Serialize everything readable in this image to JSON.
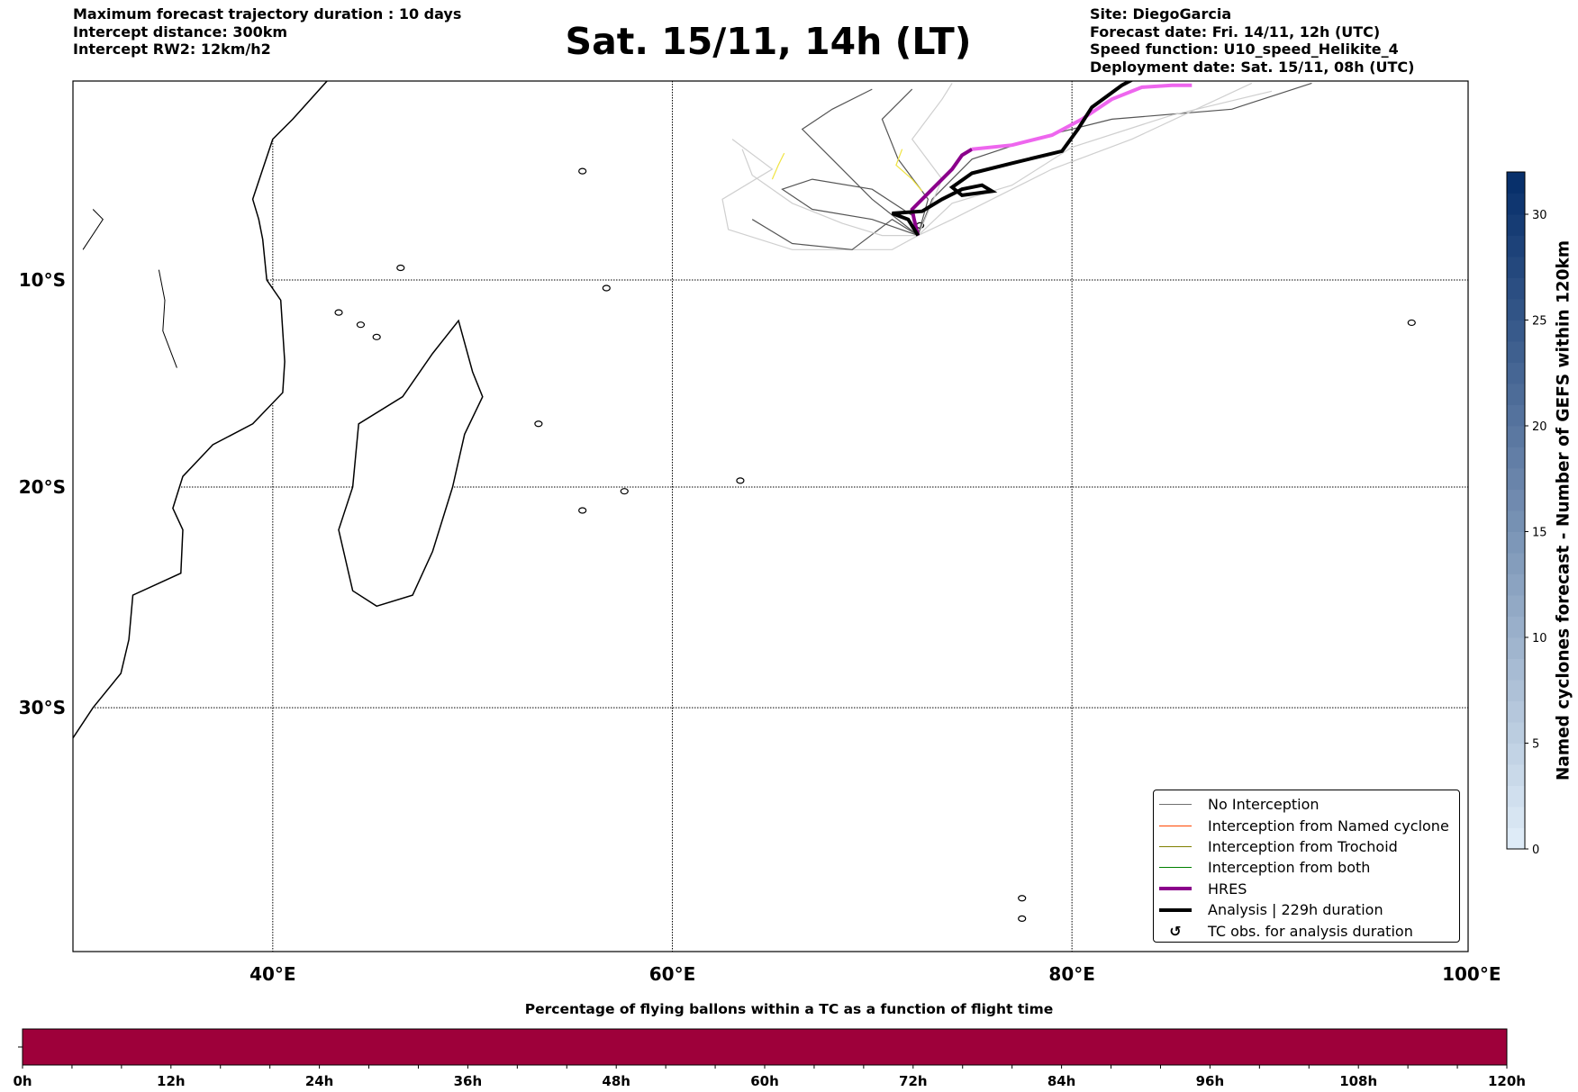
{
  "header_left": [
    "Maximum forecast trajectory duration : 10 days",
    "Intercept distance: 300km",
    "Intercept RW2: 12km/h2"
  ],
  "title": "Sat. 15/11, 14h (LT)",
  "header_right": [
    "Site: DiegoGarcia",
    "Forecast date: Fri. 14/11, 12h (UTC)",
    "Speed function: U10_speed_Helikite_4",
    "Deployment date: Sat. 15/11, 08h (UTC)"
  ],
  "map": {
    "lon_range": [
      30,
      100
    ],
    "lat_range": [
      0,
      -40
    ],
    "lon_ticks": [
      {
        "v": 40,
        "label": "40°E"
      },
      {
        "v": 60,
        "label": "60°E"
      },
      {
        "v": 80,
        "label": "80°E"
      },
      {
        "v": 100,
        "label": "100°E"
      }
    ],
    "lat_ticks": [
      {
        "v": -10,
        "label": "10°S"
      },
      {
        "v": -20,
        "label": "20°S"
      },
      {
        "v": -30,
        "label": "30°S"
      }
    ]
  },
  "legend": [
    {
      "label": "No Interception",
      "color": "#707070",
      "width": 1
    },
    {
      "label": "Interception from Named cyclone",
      "color": "#ff4500",
      "width": 1
    },
    {
      "label": "Interception from Trochoid",
      "color": "#808000",
      "width": 1
    },
    {
      "label": "Interception from both",
      "color": "#008000",
      "width": 1
    },
    {
      "label": "HRES",
      "color": "#8b008b",
      "width": 4
    },
    {
      "label": "Analysis | 229h duration",
      "color": "#000000",
      "width": 4
    },
    {
      "label": "TC obs. for analysis duration",
      "icon": "cyclone-icon",
      "glyph": "↺"
    }
  ],
  "colorbar_right": {
    "label": "Named cyclones forecast - Number of GEFS within 120km",
    "min": 0,
    "max": 32,
    "ticks": [
      "0",
      "5",
      "10",
      "15",
      "20",
      "25",
      "30"
    ],
    "tick_values": [
      0,
      5,
      10,
      15,
      20,
      25,
      30
    ],
    "cmap": "Blues"
  },
  "colorbar_bottom": {
    "title": "Percentage of flying ballons within a TC as a function of flight time",
    "ticks": [
      "0h",
      "12h",
      "24h",
      "36h",
      "48h",
      "60h",
      "72h",
      "84h",
      "96h",
      "108h",
      "120h"
    ],
    "fill_color": "#9e003a",
    "max_hours": 120
  }
}
